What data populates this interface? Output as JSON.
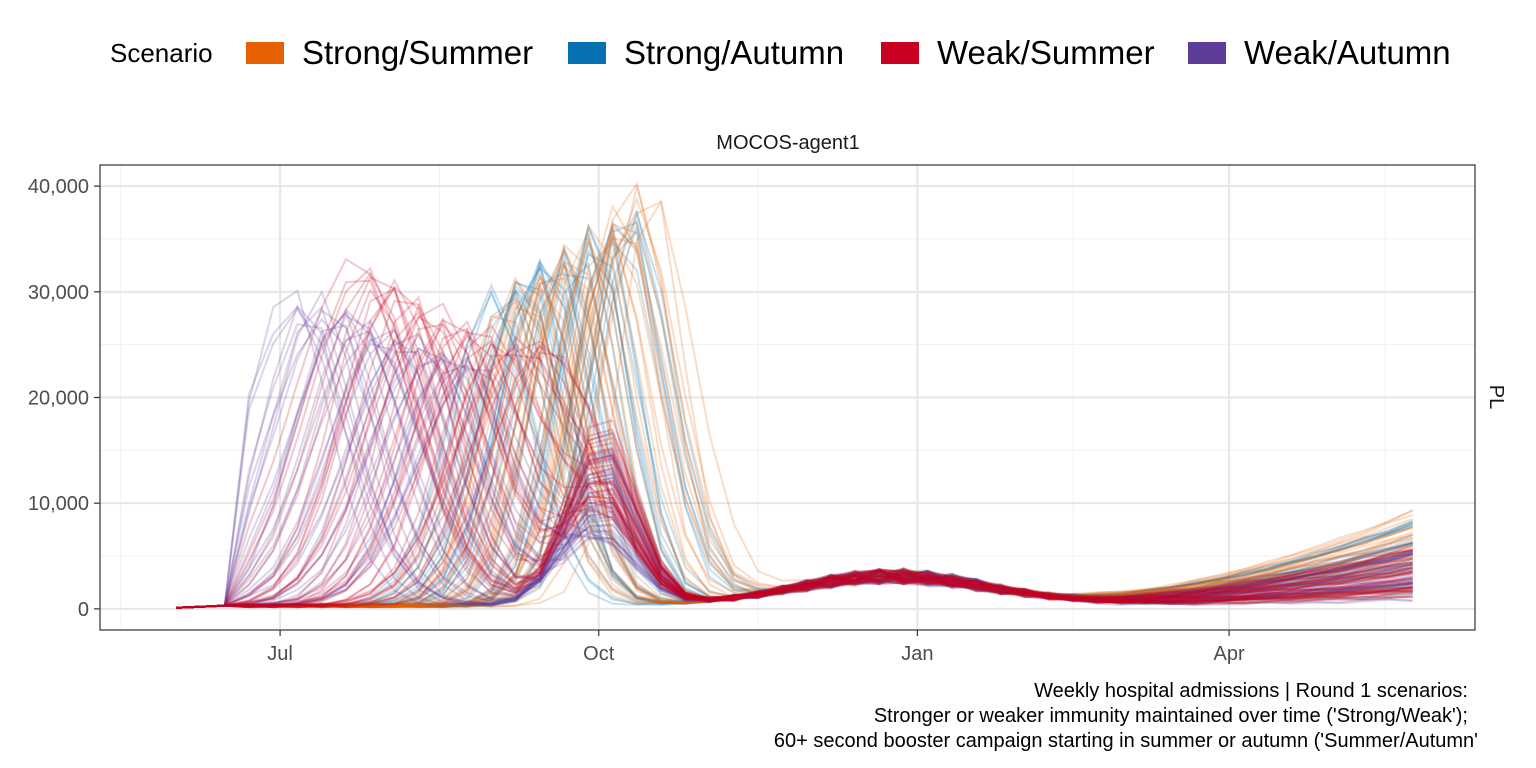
{
  "chart_data": {
    "type": "line",
    "title": "",
    "panel_strip_top": "MOCOS-agent1",
    "panel_strip_right": "PL",
    "legend": {
      "title": "Scenario",
      "position": "top",
      "entries": [
        {
          "label": "Strong/Summer",
          "color": "#e66101"
        },
        {
          "label": "Strong/Autumn",
          "color": "#0571b0"
        },
        {
          "label": "Weak/Summer",
          "color": "#ca0020"
        },
        {
          "label": "Weak/Autumn",
          "color": "#5e3c99"
        }
      ]
    },
    "x_axis": {
      "type": "date",
      "range": [
        "2022-05-10",
        "2023-06-11"
      ],
      "ticks": [
        {
          "date": "2022-07-01",
          "label": "Jul"
        },
        {
          "date": "2022-10-01",
          "label": "Oct"
        },
        {
          "date": "2023-01-01",
          "label": "Jan"
        },
        {
          "date": "2023-04-01",
          "label": "Apr"
        }
      ]
    },
    "y_axis": {
      "range": [
        -2000,
        42000
      ],
      "ticks": [
        {
          "value": 0,
          "label": "0"
        },
        {
          "value": 10000,
          "label": "10,000"
        },
        {
          "value": 20000,
          "label": "20,000"
        },
        {
          "value": 30000,
          "label": "30,000"
        },
        {
          "value": 40000,
          "label": "40,000"
        }
      ]
    },
    "grid": true,
    "series_summary": [
      {
        "scenario": "Strong/Summer",
        "first_peak_date": "2022-10-16",
        "first_peak_value_range": [
          25000,
          41500
        ],
        "end_date": "2023-05-28",
        "end_value_range": [
          1000,
          10000
        ]
      },
      {
        "scenario": "Strong/Autumn",
        "first_peak_date": "2022-10-12",
        "first_peak_value_range": [
          26000,
          39500
        ],
        "end_date": "2023-05-28",
        "end_value_range": [
          1000,
          8500
        ]
      },
      {
        "scenario": "Weak/Summer",
        "first_peak_date": "2022-08-20",
        "first_peak_value_range": [
          20000,
          33500
        ],
        "end_date": "2023-05-28",
        "end_value_range": [
          500,
          6500
        ]
      },
      {
        "scenario": "Weak/Autumn",
        "first_peak_date": "2022-08-01",
        "first_peak_value_range": [
          20000,
          31000
        ],
        "end_date": "2023-05-28",
        "end_value_range": [
          500,
          6000
        ]
      }
    ],
    "trajectory_count_per_scenario": 38,
    "start_date": "2022-06-01",
    "caption": [
      "Weekly hospital admissions | Round 1 scenarios:",
      "Stronger or weaker immunity maintained over time ('Strong/Weak');",
      "60+ second booster campaign starting in summer or autumn ('Summer/Autumn'"
    ]
  }
}
